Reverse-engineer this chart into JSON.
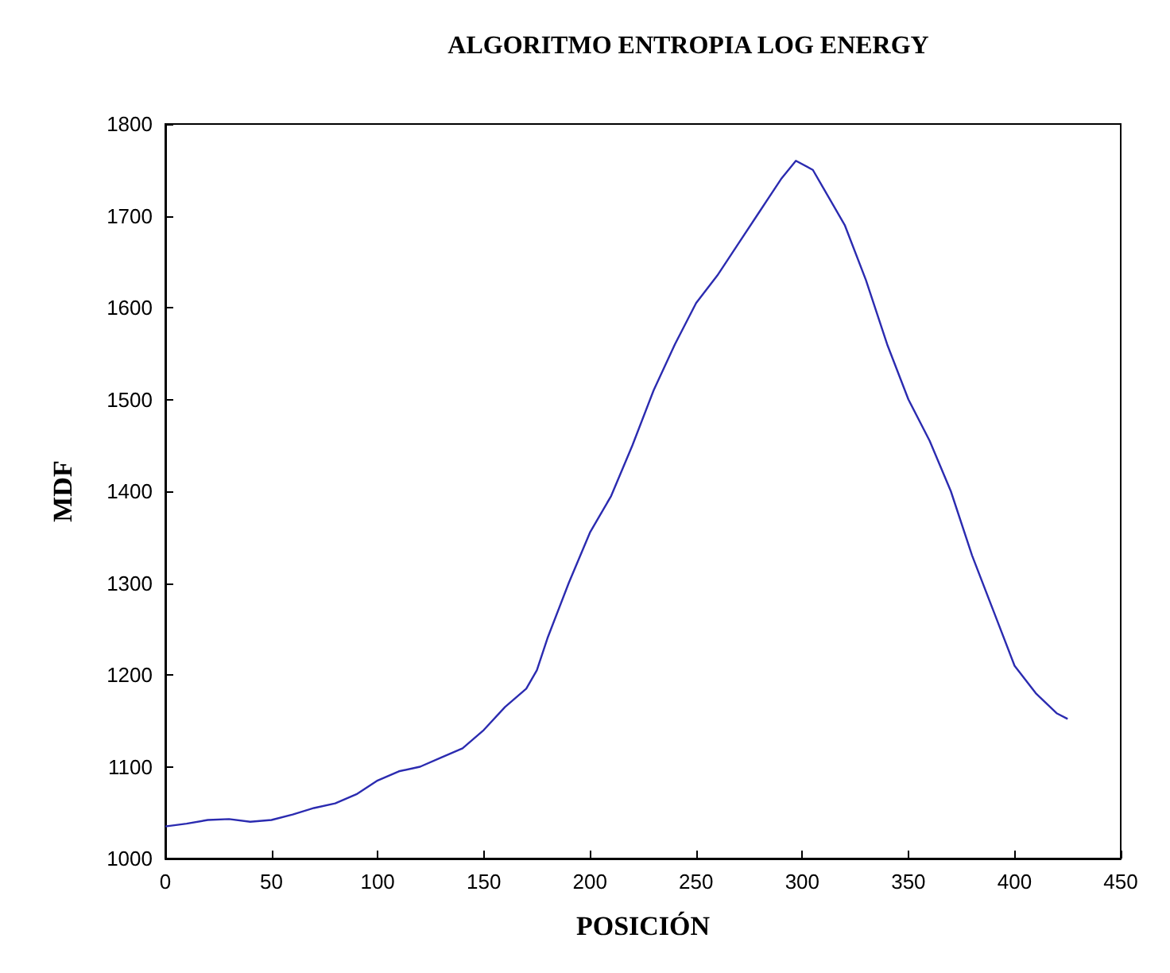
{
  "chart_data": {
    "type": "line",
    "title": "ALGORITMO ENTROPIA LOG ENERGY",
    "xlabel": "POSICIÓN",
    "ylabel": "MDF",
    "xlim": [
      0,
      450
    ],
    "xticks": [
      0,
      50,
      100,
      150,
      200,
      250,
      300,
      350,
      400,
      450
    ],
    "ylim": [
      1000,
      1800
    ],
    "yticks": [
      1000,
      1100,
      1200,
      1300,
      1400,
      1500,
      1600,
      1700,
      1800
    ],
    "grid": false,
    "marker": "none",
    "line_style": "solid",
    "series": [
      {
        "color": "#2b2bb0",
        "x": [
          0,
          10,
          20,
          30,
          40,
          50,
          60,
          70,
          80,
          90,
          100,
          110,
          120,
          130,
          140,
          150,
          160,
          170,
          175,
          180,
          190,
          200,
          210,
          220,
          230,
          240,
          250,
          260,
          270,
          280,
          290,
          297,
          305,
          310,
          320,
          330,
          340,
          350,
          360,
          370,
          380,
          390,
          400,
          410,
          420,
          425
        ],
        "values": [
          1035,
          1038,
          1042,
          1043,
          1040,
          1042,
          1048,
          1055,
          1060,
          1070,
          1085,
          1095,
          1100,
          1110,
          1120,
          1140,
          1165,
          1185,
          1205,
          1240,
          1300,
          1355,
          1395,
          1450,
          1510,
          1560,
          1605,
          1635,
          1670,
          1705,
          1740,
          1760,
          1750,
          1730,
          1690,
          1630,
          1560,
          1500,
          1455,
          1400,
          1330,
          1270,
          1210,
          1180,
          1158,
          1152
        ]
      }
    ]
  }
}
